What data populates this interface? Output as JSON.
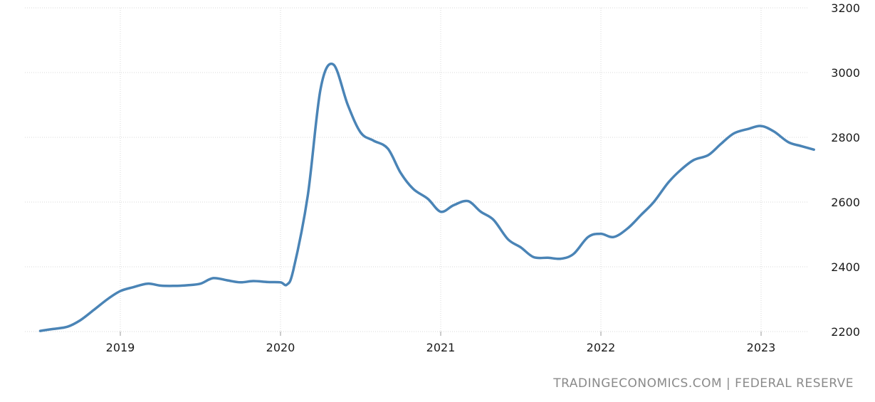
{
  "chart_data": {
    "type": "line",
    "title": "",
    "xlabel": "",
    "ylabel": "",
    "ylim": [
      2200,
      3200
    ],
    "y_ticks": [
      2200,
      2400,
      2600,
      2800,
      3000,
      3200
    ],
    "x_ticks": [
      "2019",
      "2020",
      "2021",
      "2022",
      "2023"
    ],
    "x_tick_values": [
      2019.0,
      2020.0,
      2021.0,
      2022.0,
      2023.0
    ],
    "xlim": [
      2018.5,
      2023.33
    ],
    "grid": true,
    "y_axis_position": "right",
    "line_color": "#4a84b6",
    "series": [
      {
        "name": "",
        "x": [
          2018.5,
          2018.58,
          2018.67,
          2018.75,
          2018.83,
          2018.92,
          2019.0,
          2019.08,
          2019.17,
          2019.25,
          2019.33,
          2019.42,
          2019.5,
          2019.58,
          2019.67,
          2019.75,
          2019.83,
          2019.92,
          2020.0,
          2020.04,
          2020.08,
          2020.17,
          2020.25,
          2020.33,
          2020.42,
          2020.5,
          2020.58,
          2020.67,
          2020.75,
          2020.83,
          2020.92,
          2021.0,
          2021.08,
          2021.17,
          2021.25,
          2021.33,
          2021.42,
          2021.5,
          2021.58,
          2021.67,
          2021.75,
          2021.83,
          2021.92,
          2022.0,
          2022.08,
          2022.17,
          2022.25,
          2022.33,
          2022.42,
          2022.5,
          2022.58,
          2022.67,
          2022.75,
          2022.83,
          2022.92,
          2023.0,
          2023.08,
          2023.17,
          2023.25,
          2023.33
        ],
        "values": [
          2202,
          2208,
          2215,
          2235,
          2265,
          2300,
          2325,
          2337,
          2348,
          2342,
          2341,
          2343,
          2348,
          2365,
          2358,
          2352,
          2356,
          2353,
          2352,
          2345,
          2390,
          2620,
          2950,
          3025,
          2900,
          2815,
          2790,
          2765,
          2690,
          2640,
          2610,
          2570,
          2590,
          2603,
          2570,
          2545,
          2485,
          2460,
          2430,
          2428,
          2425,
          2440,
          2492,
          2502,
          2492,
          2520,
          2560,
          2600,
          2660,
          2700,
          2730,
          2745,
          2780,
          2812,
          2826,
          2835,
          2818,
          2785,
          2773,
          2762
        ]
      }
    ]
  },
  "footer": {
    "credit": "TRADINGECONOMICS.COM  |  FEDERAL RESERVE"
  }
}
